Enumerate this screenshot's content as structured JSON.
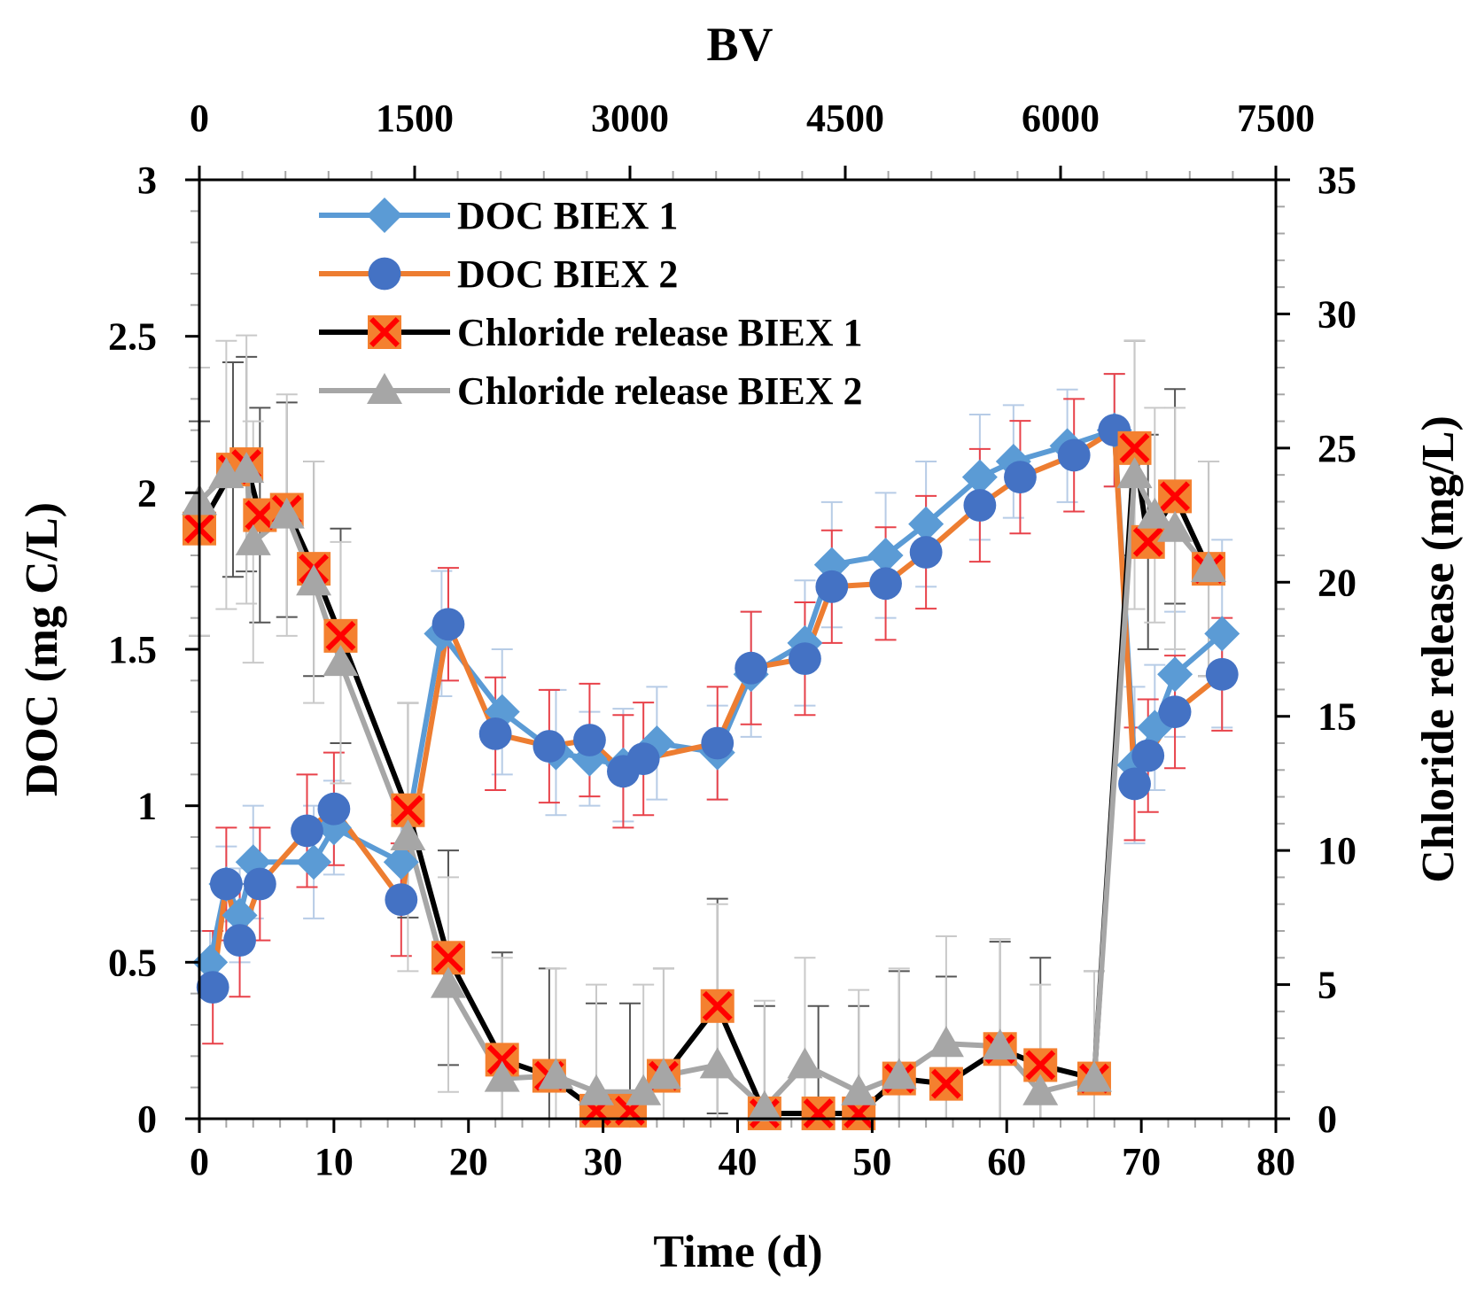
{
  "chart_data": {
    "type": "line",
    "xlabel": "Time (d)",
    "ylabel": "DOC (mg C/L)",
    "y2label": "Chloride release (mg/L)",
    "x2label": "BV",
    "xlim": [
      0,
      80
    ],
    "ylim": [
      0,
      3
    ],
    "y2lim": [
      0,
      35
    ],
    "x2lim": [
      0,
      7500
    ],
    "x_ticks": [
      0,
      10,
      20,
      30,
      40,
      50,
      60,
      70,
      80
    ],
    "y_ticks": [
      0,
      0.5,
      1,
      1.5,
      2,
      2.5,
      3
    ],
    "y_tick_labels": [
      "0",
      "0.5",
      "1",
      "1.5",
      "2",
      "2.5",
      "3"
    ],
    "y2_ticks": [
      0,
      5,
      10,
      15,
      20,
      25,
      30,
      35
    ],
    "x2_ticks": [
      0,
      1500,
      3000,
      4500,
      6000,
      7500
    ],
    "grid": false,
    "legend_position": "top-left",
    "series": [
      {
        "name": "DOC BIEX 1",
        "axis": "left",
        "color": "#5b9bd5",
        "marker": "diamond",
        "x": [
          0.8,
          2,
          3,
          4,
          8.5,
          10,
          15,
          18,
          22.5,
          26.5,
          29,
          31.5,
          34,
          38.5,
          41,
          45,
          47,
          51,
          54,
          58,
          60.5,
          64.5,
          68,
          69.5,
          71,
          72.5,
          76
        ],
        "y": [
          0.5,
          0.75,
          0.65,
          0.82,
          0.82,
          0.93,
          0.82,
          1.55,
          1.3,
          1.17,
          1.15,
          1.13,
          1.2,
          1.17,
          1.42,
          1.52,
          1.77,
          1.8,
          1.9,
          2.05,
          2.1,
          2.15,
          2.2,
          1.13,
          1.25,
          1.42,
          1.55
        ],
        "err": [
          0.1,
          0.12,
          0.15,
          0.18,
          0.18,
          0.15,
          0.15,
          0.2,
          0.2,
          0.2,
          0.15,
          0.18,
          0.18,
          0.15,
          0.2,
          0.2,
          0.2,
          0.2,
          0.2,
          0.2,
          0.18,
          0.18,
          0.18,
          0.25,
          0.2,
          0.2,
          0.3
        ]
      },
      {
        "name": "DOC BIEX 2",
        "axis": "left",
        "color": "#ed7d31",
        "marker": "circle",
        "x": [
          1,
          2,
          3,
          4.5,
          8,
          10,
          15,
          18.5,
          22,
          26,
          29,
          31.5,
          33,
          38.5,
          41,
          45,
          47,
          51,
          54,
          58,
          61,
          65,
          68,
          69.5,
          70.5,
          72.5,
          76
        ],
        "y": [
          0.42,
          0.75,
          0.57,
          0.75,
          0.92,
          0.99,
          0.7,
          1.58,
          1.23,
          1.19,
          1.21,
          1.11,
          1.15,
          1.2,
          1.44,
          1.47,
          1.7,
          1.71,
          1.81,
          1.96,
          2.05,
          2.12,
          2.2,
          1.07,
          1.16,
          1.3,
          1.42
        ],
        "err": [
          0.18,
          0.18,
          0.18,
          0.18,
          0.18,
          0.18,
          0.18,
          0.18,
          0.18,
          0.18,
          0.18,
          0.18,
          0.18,
          0.18,
          0.18,
          0.18,
          0.18,
          0.18,
          0.18,
          0.18,
          0.18,
          0.18,
          0.18,
          0.18,
          0.18,
          0.18,
          0.18
        ]
      },
      {
        "name": "Chloride release BIEX 1",
        "axis": "right",
        "color": "#000000",
        "marker": "x-square",
        "marker_fill": "#f4802f",
        "marker_cross": "#ff0000",
        "x": [
          0,
          2.5,
          3.5,
          4.5,
          6.5,
          8.5,
          10.5,
          15.5,
          18.5,
          22.5,
          26,
          29.5,
          32,
          34.5,
          38.5,
          42,
          46,
          49,
          52,
          55.5,
          59.5,
          62.5,
          66.5,
          69.5,
          70.5,
          72.5,
          75
        ],
        "y": [
          22,
          24.2,
          24.4,
          22.5,
          22.7,
          20.5,
          18,
          11.5,
          6,
          2.2,
          1.6,
          0.3,
          0.3,
          1.6,
          4.2,
          0.2,
          0.2,
          0.2,
          1.5,
          1.3,
          2.6,
          2,
          1.5,
          25,
          21.5,
          23.2,
          20.5
        ],
        "err": [
          4,
          4,
          4,
          4,
          4,
          4,
          4,
          4,
          4,
          4,
          4,
          4,
          4,
          4,
          4,
          4,
          4,
          4,
          4,
          4,
          4,
          4,
          4,
          4,
          4,
          4,
          4
        ]
      },
      {
        "name": "Chloride release BIEX 2",
        "axis": "right",
        "color": "#a6a6a6",
        "marker": "triangle",
        "x": [
          0,
          2,
          3.5,
          4,
          6.5,
          8.5,
          10.5,
          15.5,
          18.5,
          22.5,
          26.5,
          29.5,
          33,
          34.5,
          38.5,
          42,
          45,
          49,
          52,
          55.5,
          59.5,
          62.5,
          66.5,
          69.5,
          71,
          72.5,
          75
        ],
        "y": [
          23,
          24,
          24.2,
          21.5,
          22.5,
          20,
          17,
          10.5,
          5,
          1.5,
          1.6,
          1,
          1,
          1.6,
          2,
          0.4,
          2,
          1,
          1.6,
          2.8,
          2.7,
          1,
          1.5,
          24,
          22.5,
          22,
          20.5
        ],
        "err": [
          5,
          5,
          5,
          4.5,
          4.5,
          4.5,
          4.5,
          5,
          4,
          4.5,
          4,
          4,
          4,
          4,
          6,
          4,
          4,
          3.8,
          4,
          4,
          4,
          4,
          4,
          5,
          4,
          4.5,
          4
        ]
      }
    ]
  }
}
